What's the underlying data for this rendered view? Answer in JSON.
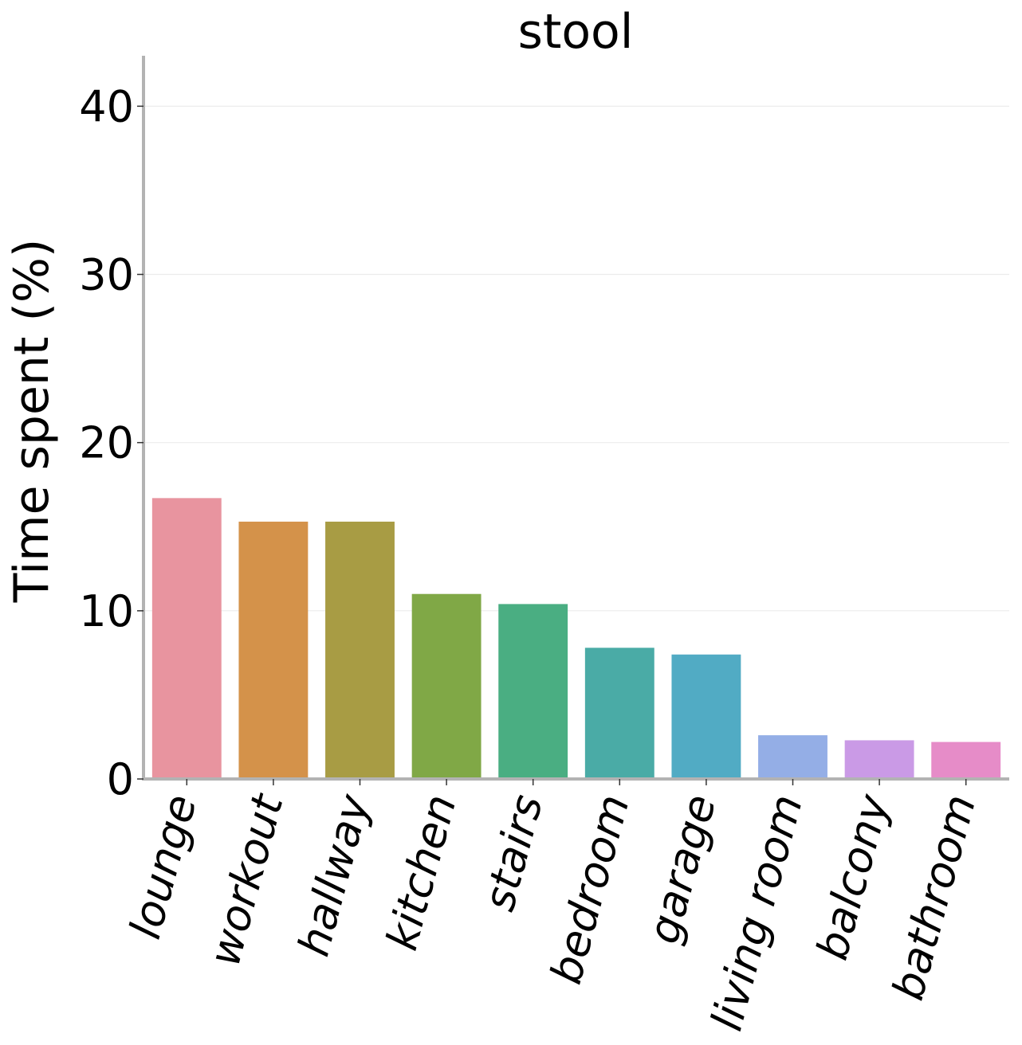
{
  "chart_data": {
    "type": "bar",
    "title": "stool",
    "xlabel": "",
    "ylabel": "Time spent (%)",
    "categories": [
      "lounge",
      "workout",
      "hallway",
      "kitchen",
      "stairs",
      "bedroom",
      "garage",
      "living room",
      "balcony",
      "bathroom"
    ],
    "values": [
      16.7,
      15.3,
      15.3,
      11.0,
      10.4,
      7.8,
      7.4,
      2.6,
      2.3,
      2.2
    ],
    "colors": [
      "#e8949f",
      "#d4924a",
      "#a89c44",
      "#80a846",
      "#4aae82",
      "#4aaba6",
      "#51abc4",
      "#94aee6",
      "#ca9ae6",
      "#e68cc8"
    ],
    "ylim": [
      0,
      43
    ],
    "yticks": [
      0,
      10,
      20,
      30,
      40
    ],
    "grid": "y",
    "legend": "none"
  }
}
